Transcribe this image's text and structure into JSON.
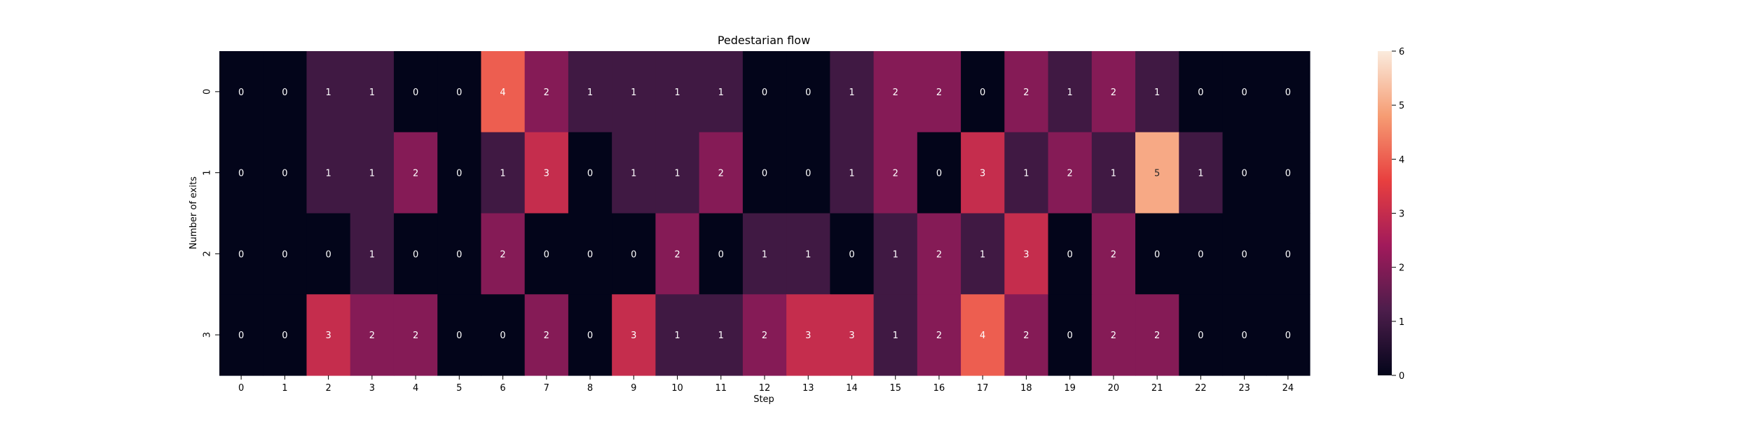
{
  "chart_data": {
    "type": "heatmap",
    "title": "Pedestarian flow",
    "xlabel": "Step",
    "ylabel": "Number of exits",
    "x_categories": [
      "0",
      "1",
      "2",
      "3",
      "4",
      "5",
      "6",
      "7",
      "8",
      "9",
      "10",
      "11",
      "12",
      "13",
      "14",
      "15",
      "16",
      "17",
      "18",
      "19",
      "20",
      "21",
      "22",
      "23",
      "24"
    ],
    "y_categories": [
      "0",
      "1",
      "2",
      "3"
    ],
    "values": [
      [
        0,
        0,
        1,
        1,
        0,
        0,
        4,
        2,
        1,
        1,
        1,
        1,
        0,
        0,
        1,
        2,
        2,
        0,
        2,
        1,
        2,
        1,
        0,
        0,
        0
      ],
      [
        0,
        0,
        1,
        1,
        2,
        0,
        1,
        3,
        0,
        1,
        1,
        2,
        0,
        0,
        1,
        2,
        0,
        3,
        1,
        2,
        1,
        5,
        1,
        0,
        0
      ],
      [
        0,
        0,
        0,
        1,
        0,
        0,
        2,
        0,
        0,
        0,
        2,
        0,
        1,
        1,
        0,
        1,
        2,
        1,
        3,
        0,
        2,
        0,
        0,
        0,
        0
      ],
      [
        0,
        0,
        3,
        2,
        2,
        0,
        0,
        2,
        0,
        3,
        1,
        1,
        2,
        3,
        3,
        1,
        2,
        4,
        2,
        0,
        2,
        2,
        0,
        0,
        0
      ]
    ],
    "colorbar": {
      "min": 0,
      "max": 6,
      "ticks": [
        "0",
        "1",
        "2",
        "3",
        "4",
        "5",
        "6"
      ],
      "colormap": "rocket",
      "stops": [
        "#03051a",
        "#4c1d4b",
        "#a11a5b",
        "#e83f3f",
        "#f69c73",
        "#faebdd"
      ]
    }
  }
}
